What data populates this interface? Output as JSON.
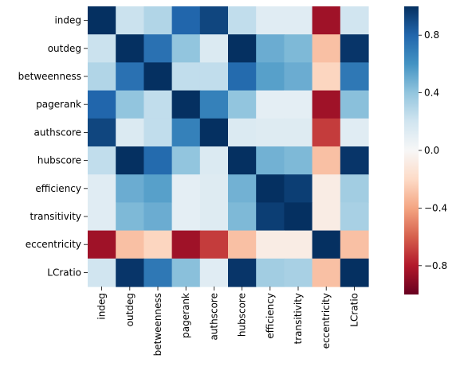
{
  "chart_data": {
    "type": "heatmap",
    "title": "",
    "xlabel": "",
    "ylabel": "",
    "variables": [
      "indeg",
      "outdeg",
      "betweenness",
      "pagerank",
      "authscore",
      "hubscore",
      "efficiency",
      "transitivity",
      "eccentricity",
      "LCratio"
    ],
    "matrix": [
      [
        1.0,
        0.22,
        0.3,
        0.8,
        0.92,
        0.25,
        0.12,
        0.12,
        -0.85,
        0.2
      ],
      [
        0.22,
        1.0,
        0.75,
        0.4,
        0.15,
        1.0,
        0.5,
        0.45,
        -0.3,
        0.98
      ],
      [
        0.3,
        0.75,
        1.0,
        0.25,
        0.25,
        0.78,
        0.55,
        0.5,
        -0.22,
        0.72
      ],
      [
        0.8,
        0.4,
        0.25,
        1.0,
        0.68,
        0.4,
        0.1,
        0.1,
        -0.85,
        0.42
      ],
      [
        0.92,
        0.15,
        0.25,
        0.68,
        1.0,
        0.15,
        0.13,
        0.13,
        -0.7,
        0.12
      ],
      [
        0.25,
        1.0,
        0.78,
        0.4,
        0.15,
        1.0,
        0.48,
        0.45,
        -0.3,
        0.98
      ],
      [
        0.12,
        0.5,
        0.55,
        0.1,
        0.13,
        0.48,
        1.0,
        0.95,
        -0.08,
        0.35
      ],
      [
        0.12,
        0.45,
        0.5,
        0.1,
        0.13,
        0.45,
        0.95,
        1.0,
        -0.08,
        0.33
      ],
      [
        -0.85,
        -0.3,
        -0.22,
        -0.85,
        -0.7,
        -0.3,
        -0.08,
        -0.08,
        1.0,
        -0.3
      ],
      [
        0.2,
        0.98,
        0.72,
        0.42,
        0.12,
        0.98,
        0.35,
        0.33,
        -0.3,
        1.0
      ]
    ],
    "colorbar": {
      "range": [
        -1,
        1
      ],
      "ticks": [
        0.8,
        0.4,
        0.0,
        -0.4,
        -0.8
      ],
      "tick_labels": [
        "0.8",
        "0.4",
        "0.0",
        "−0.4",
        "−0.8"
      ],
      "colormap": "RdBu"
    },
    "grid": false,
    "legend": "colorbar-right"
  }
}
